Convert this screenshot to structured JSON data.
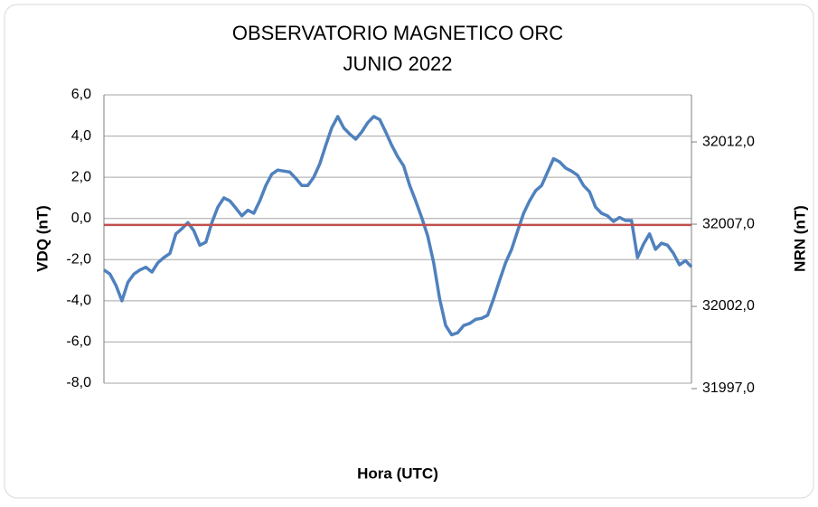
{
  "chart_data": {
    "type": "line",
    "title": [
      "OBSERVATORIO MAGNETICO ORC",
      "JUNIO 2022"
    ],
    "xlabel": "Hora (UTC)",
    "ylabel": "VDQ (nT)",
    "y2label": "NRN (nT)",
    "grid": true,
    "ylim": [
      -8,
      6
    ],
    "yticks": [
      {
        "value": 6,
        "label": "6,0"
      },
      {
        "value": 4,
        "label": "4,0"
      },
      {
        "value": 2,
        "label": "2,0"
      },
      {
        "value": 0,
        "label": "0,0"
      },
      {
        "value": -2,
        "label": "-2,0"
      },
      {
        "value": -4,
        "label": "-4,0"
      },
      {
        "value": -6,
        "label": "-6,0"
      },
      {
        "value": -8,
        "label": "-8,0"
      }
    ],
    "y2lim": [
      31997.33,
      32014.86
    ],
    "y2ticks": [
      {
        "value": 32012,
        "label": "32012,0"
      },
      {
        "value": 32007,
        "label": "32007,0"
      },
      {
        "value": 32002,
        "label": "32002,0"
      },
      {
        "value": 31997,
        "label": "31997,0"
      }
    ],
    "series": [
      {
        "color": "#4f81bd",
        "values": [
          -2.5,
          -2.7,
          -3.25,
          -4.0,
          -3.1,
          -2.7,
          -2.5,
          -2.37,
          -2.6,
          -2.15,
          -1.9,
          -1.7,
          -0.75,
          -0.5,
          -0.2,
          -0.6,
          -1.3,
          -1.15,
          -0.2,
          0.55,
          1.0,
          0.85,
          0.5,
          0.13,
          0.4,
          0.25,
          0.85,
          1.6,
          2.15,
          2.35,
          2.3,
          2.25,
          1.95,
          1.6,
          1.6,
          2.0,
          2.65,
          3.55,
          4.4,
          4.95,
          4.4,
          4.1,
          3.85,
          4.2,
          4.65,
          4.95,
          4.8,
          4.2,
          3.55,
          3.0,
          2.55,
          1.6,
          0.85,
          0.05,
          -0.85,
          -2.15,
          -3.9,
          -5.2,
          -5.65,
          -5.55,
          -5.2,
          -5.1,
          -4.9,
          -4.85,
          -4.7,
          -3.9,
          -3.0,
          -2.15,
          -1.5,
          -0.6,
          0.25,
          0.85,
          1.35,
          1.6,
          2.25,
          2.9,
          2.75,
          2.45,
          2.3,
          2.1,
          1.6,
          1.3,
          0.55,
          0.25,
          0.13,
          -0.15,
          0.05,
          -0.1,
          -0.1,
          -1.9,
          -1.25,
          -0.75,
          -1.5,
          -1.2,
          -1.3,
          -1.7,
          -2.25,
          -2.05,
          -2.35
        ]
      },
      {
        "color": "#c0504d",
        "axis": "y2",
        "values": [
          32006.95,
          32006.95
        ]
      }
    ]
  }
}
